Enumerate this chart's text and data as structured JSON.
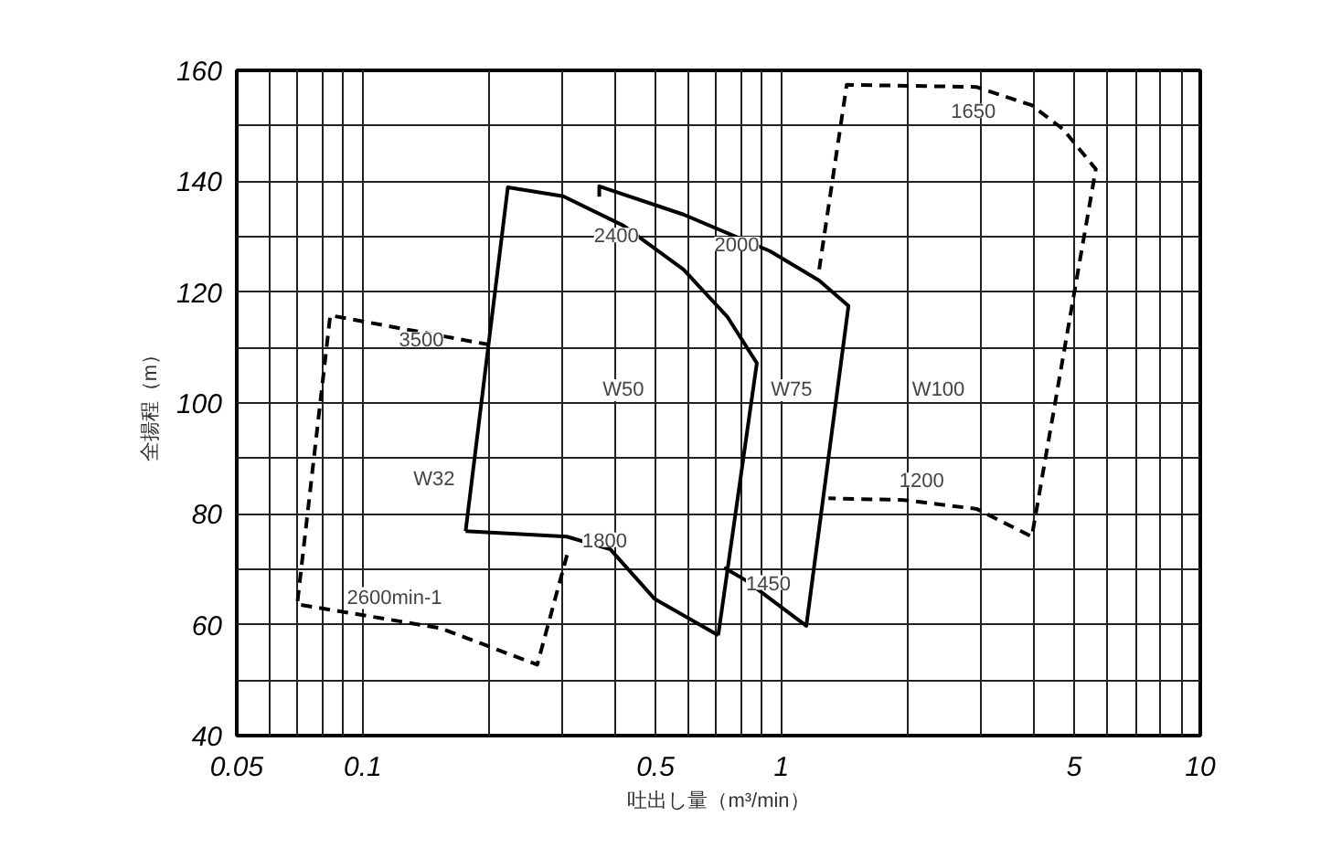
{
  "chart_data": {
    "type": "line",
    "xlabel": "吐出し量（m³/min）",
    "ylabel": "全揚程（m）",
    "log": "x",
    "grid": true,
    "xlim": [
      0.05,
      10
    ],
    "ylim": [
      40,
      160
    ],
    "xticks": [
      0.05,
      {
        "value": 0.06,
        "label": null
      },
      {
        "value": 0.07,
        "label": null
      },
      {
        "value": 0.08,
        "label": null
      },
      {
        "value": 0.09,
        "label": null
      },
      0.1,
      {
        "value": 0.2,
        "label": null
      },
      {
        "value": 0.3,
        "label": null
      },
      {
        "value": 0.4,
        "label": null
      },
      0.5,
      {
        "value": 0.6,
        "label": null
      },
      {
        "value": 0.7,
        "label": null
      },
      {
        "value": 0.8,
        "label": null
      },
      {
        "value": 0.9,
        "label": null
      },
      1,
      {
        "value": 2,
        "label": null
      },
      {
        "value": 3,
        "label": null
      },
      {
        "value": 4,
        "label": null
      },
      5,
      {
        "value": 6,
        "label": null
      },
      {
        "value": 7,
        "label": null
      },
      {
        "value": 8,
        "label": null
      },
      {
        "value": 9,
        "label": null
      },
      10
    ],
    "yticks": [
      40,
      {
        "value": 50,
        "label": null
      },
      60,
      {
        "value": 70,
        "label": null
      },
      80,
      {
        "value": 90,
        "label": null
      },
      100,
      {
        "value": 110,
        "label": null
      },
      120,
      {
        "value": 130,
        "label": null
      },
      140,
      {
        "value": 150,
        "label": null
      },
      160
    ],
    "series": [
      {
        "color": "#000000",
        "line_style": "dashed",
        "x": [
          0.201,
          0.0836,
          0.0697,
          0.153,
          0.261,
          0.31
        ],
        "values": [
          110.5,
          115.8,
          63.7,
          59.4,
          52.8,
          73.6
        ]
      },
      {
        "color": "#000000",
        "line_style": "solid",
        "x": [
          0.176,
          0.222,
          0.301,
          0.419,
          0.583,
          0.743,
          0.873,
          0.706
        ],
        "values": [
          76.9,
          138.9,
          137.3,
          132.0,
          124.1,
          115.5,
          107.2,
          58.1
        ]
      },
      {
        "color": "#000000",
        "line_style": "solid",
        "x": [
          0.176,
          0.307,
          0.39,
          0.497,
          0.706
        ],
        "values": [
          76.9,
          75.9,
          73.6,
          64.7,
          58.1
        ]
      },
      {
        "color": "#000000",
        "line_style": "solid",
        "x": [
          0.367,
          0.367,
          0.583,
          0.938,
          1.23,
          1.445,
          1.146,
          0.938,
          0.822,
          0.729
        ],
        "values": [
          137.2,
          139.1,
          134.0,
          127.4,
          122.1,
          117.5,
          59.8,
          64.7,
          68.0,
          70.3
        ]
      },
      {
        "color": "#000000",
        "line_style": "dashed",
        "x": [
          1.23,
          1.431,
          2.92,
          3.96,
          4.7,
          5.63,
          3.96,
          2.92,
          1.956,
          1.294
        ],
        "values": [
          124.1,
          157.4,
          157.0,
          153.7,
          149.4,
          142.2,
          75.9,
          80.9,
          82.5,
          82.8
        ]
      }
    ],
    "annotations": [
      "3500",
      "2600min-1",
      "W32",
      "2400",
      "2000",
      "W50",
      "W75",
      "W100",
      "1800",
      "1450",
      "1650",
      "1200"
    ]
  }
}
